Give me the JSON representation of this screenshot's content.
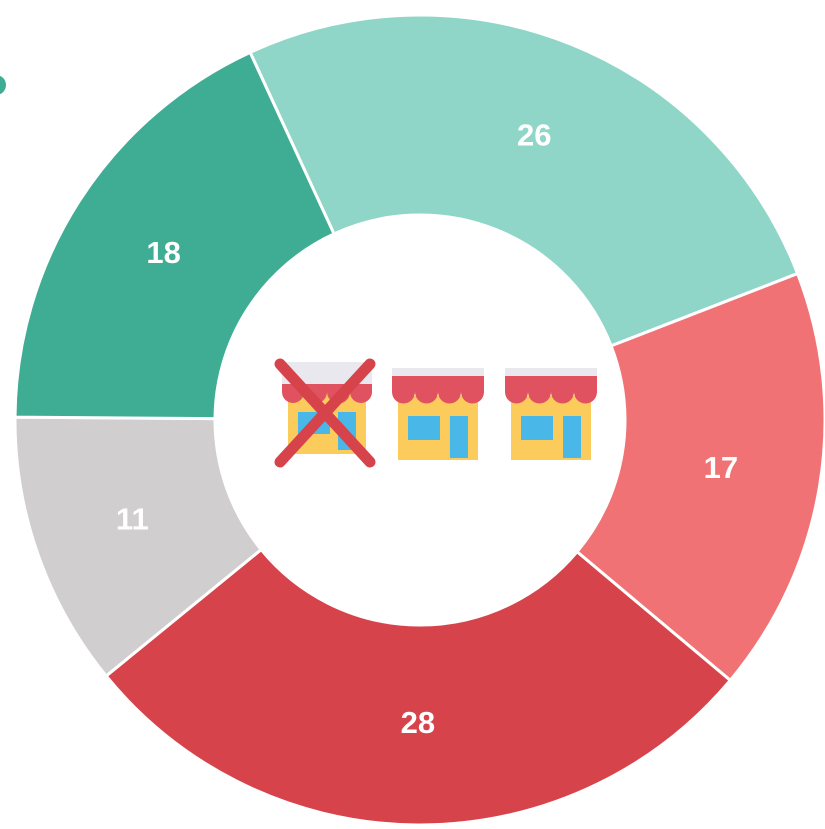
{
  "chart_data": {
    "type": "donut",
    "categories": [
      null,
      null,
      null,
      null,
      null
    ],
    "values": [
      26,
      17,
      28,
      11,
      18
    ],
    "colors": [
      "#8fd6c8",
      "#f07275",
      "#d6434a",
      "#d0cecf",
      "#3fad93"
    ]
  }
}
